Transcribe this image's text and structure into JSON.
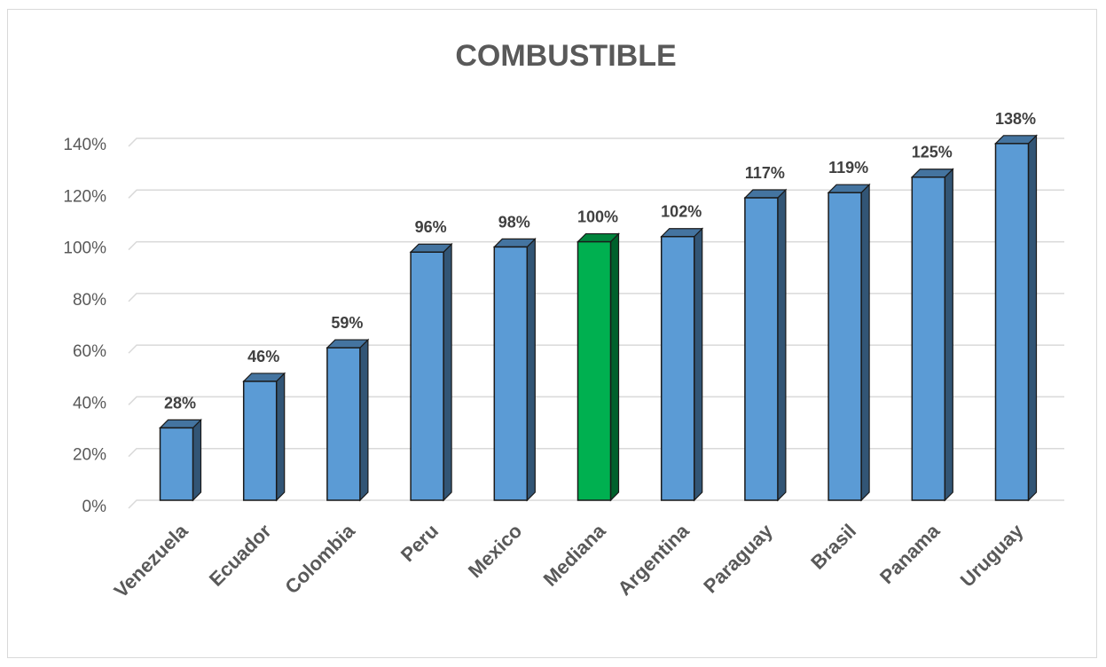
{
  "chart_data": {
    "type": "bar",
    "title": "COMBUSTIBLE",
    "xlabel": "",
    "ylabel": "",
    "ylim": [
      0,
      140
    ],
    "yticks": [
      "0%",
      "20%",
      "40%",
      "60%",
      "80%",
      "100%",
      "120%",
      "140%"
    ],
    "categories": [
      "Venezuela",
      "Ecuador",
      "Colombia",
      "Peru",
      "Mexico",
      "Mediana",
      "Argentina",
      "Paraguay",
      "Brasil",
      "Panama",
      "Uruguay"
    ],
    "values": [
      28,
      46,
      59,
      96,
      98,
      100,
      102,
      117,
      119,
      125,
      138
    ],
    "data_labels": [
      "28%",
      "46%",
      "59%",
      "96%",
      "98%",
      "100%",
      "102%",
      "117%",
      "119%",
      "125%",
      "138%"
    ],
    "bar_color": "#5b9bd5",
    "highlight_category": "Mediana",
    "highlight_color": "#00b050",
    "grid": true,
    "legend": "none"
  }
}
